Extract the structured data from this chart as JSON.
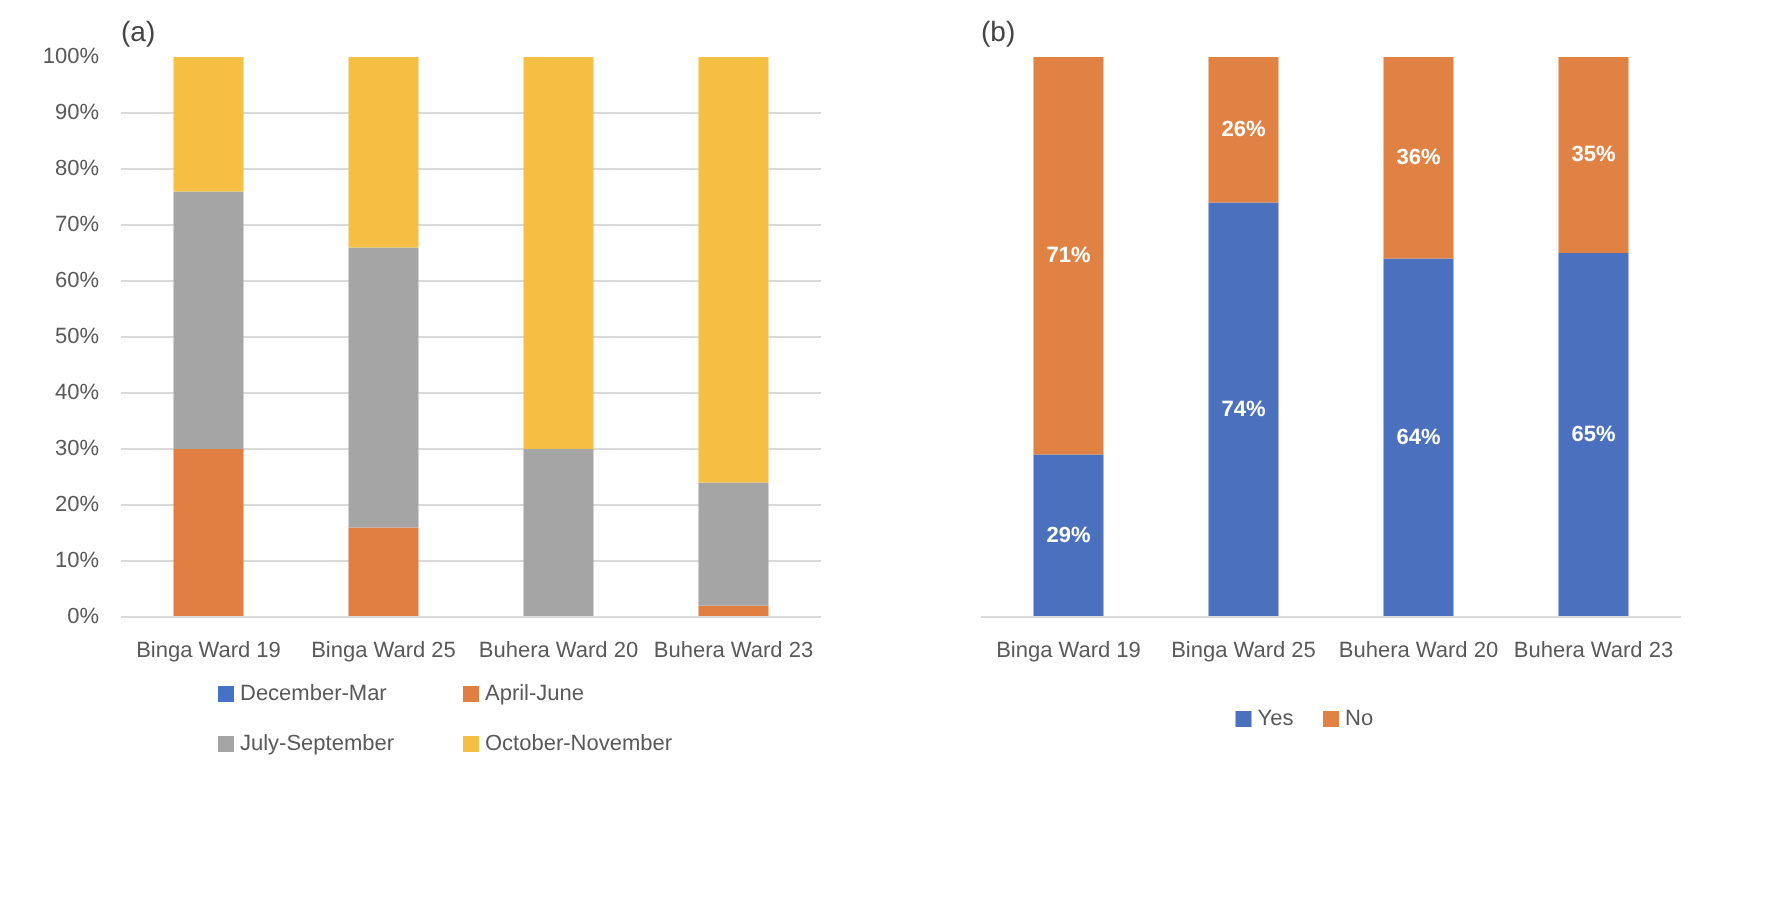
{
  "chart_data": [
    {
      "type": "bar",
      "title": "(a)",
      "stacked": true,
      "categories": [
        "Binga Ward 19",
        "Binga Ward 25",
        "Buhera Ward 20",
        "Buhera Ward 23"
      ],
      "series": [
        {
          "name": "December-Mar",
          "color": "#4472c4",
          "values": [
            0,
            0,
            0,
            0
          ]
        },
        {
          "name": "April-June",
          "color": "#e07f41",
          "values": [
            30,
            16,
            0,
            2
          ]
        },
        {
          "name": "July-September",
          "color": "#a5a5a5",
          "values": [
            46,
            50,
            30,
            22
          ]
        },
        {
          "name": "October-November",
          "color": "#f4bf42",
          "values": [
            24,
            34,
            70,
            76
          ]
        }
      ],
      "ylim": [
        0,
        100
      ],
      "yticks": [
        {
          "value": 0,
          "label": "0%"
        },
        {
          "value": 10,
          "label": "10%"
        },
        {
          "value": 20,
          "label": "20%"
        },
        {
          "value": 30,
          "label": "30%"
        },
        {
          "value": 40,
          "label": "40%"
        },
        {
          "value": 50,
          "label": "50%"
        },
        {
          "value": 60,
          "label": "60%"
        },
        {
          "value": 70,
          "label": "70%"
        },
        {
          "value": 80,
          "label": "80%"
        },
        {
          "value": 90,
          "label": "90%"
        },
        {
          "value": 100,
          "label": "100%"
        }
      ],
      "grid": "y",
      "legend": "bottom"
    },
    {
      "type": "bar",
      "title": "(b)",
      "stacked": true,
      "categories": [
        "Binga Ward 19",
        "Binga Ward 25",
        "Buhera Ward 20",
        "Buhera Ward 23"
      ],
      "series": [
        {
          "name": "Yes",
          "color": "#4a70be",
          "values": [
            29,
            74,
            64,
            65
          ],
          "value_labels": [
            "29%",
            "74%",
            "64%",
            "65%"
          ]
        },
        {
          "name": "No",
          "color": "#e08243",
          "values": [
            71,
            26,
            36,
            35
          ],
          "value_labels": [
            "71%",
            "26%",
            "36%",
            "35%"
          ]
        }
      ],
      "tick_labels": "x",
      "legend": "bottom"
    }
  ]
}
